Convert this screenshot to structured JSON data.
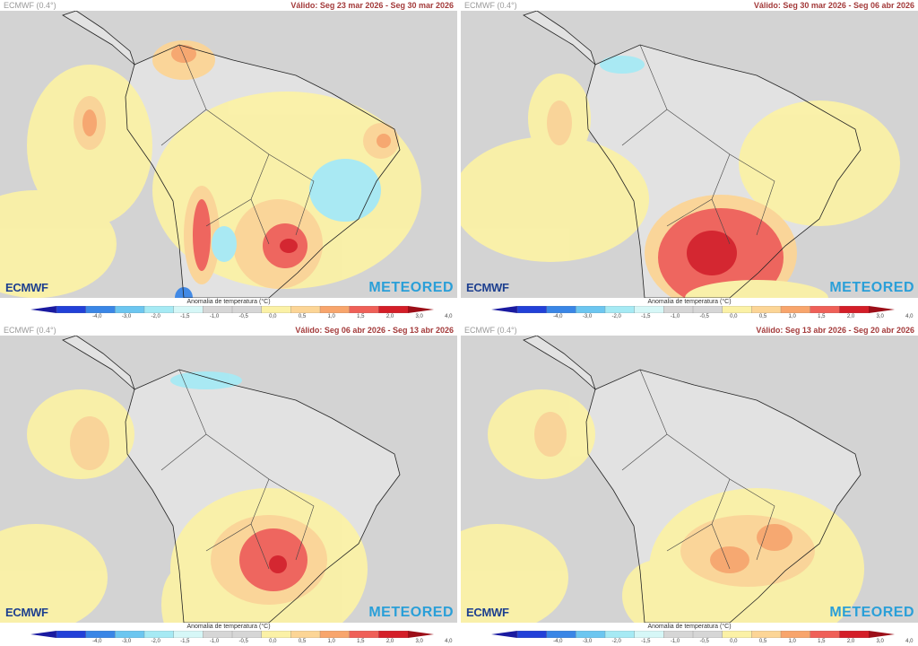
{
  "panels": [
    {
      "model": "ECMWF (0.4°)",
      "valid": "Válido: Seg 23 mar 2026 - Seg 30 mar 2026"
    },
    {
      "model": "ECMWF (0.4°)",
      "valid": "Válido: Seg 30 mar 2026 - Seg 06 abr 2026"
    },
    {
      "model": "ECMWF (0.4°)",
      "valid": "Válido: Seg 06 abr 2026 - Seg 13 abr 2026"
    },
    {
      "model": "ECMWF (0.4°)",
      "valid": "Válido: Seg 13 abr 2026 - Seg 20 abr 2026"
    }
  ],
  "logos": {
    "left": "ECMWF",
    "right": "METEORED"
  },
  "colorbar": {
    "title": "Anomalia de temperatura (°C)",
    "ticks": [
      "-4,0",
      "-3,0",
      "-2,0",
      "-1,5",
      "-1,0",
      "-0,5",
      "0,0",
      "0,5",
      "1,0",
      "1,5",
      "2,0",
      "3,0",
      "4,0"
    ],
    "colors": [
      "#2240d8",
      "#3a86e6",
      "#6cc6f0",
      "#a6eaf4",
      "#d6f7f7",
      "#d6d6d6",
      "#d6d6d6",
      "#fbf1a6",
      "#fcd596",
      "#f8a56c",
      "#ef6058",
      "#d41e28"
    ],
    "low_tip": "#1a1aa0",
    "high_tip": "#9c0e18"
  }
}
